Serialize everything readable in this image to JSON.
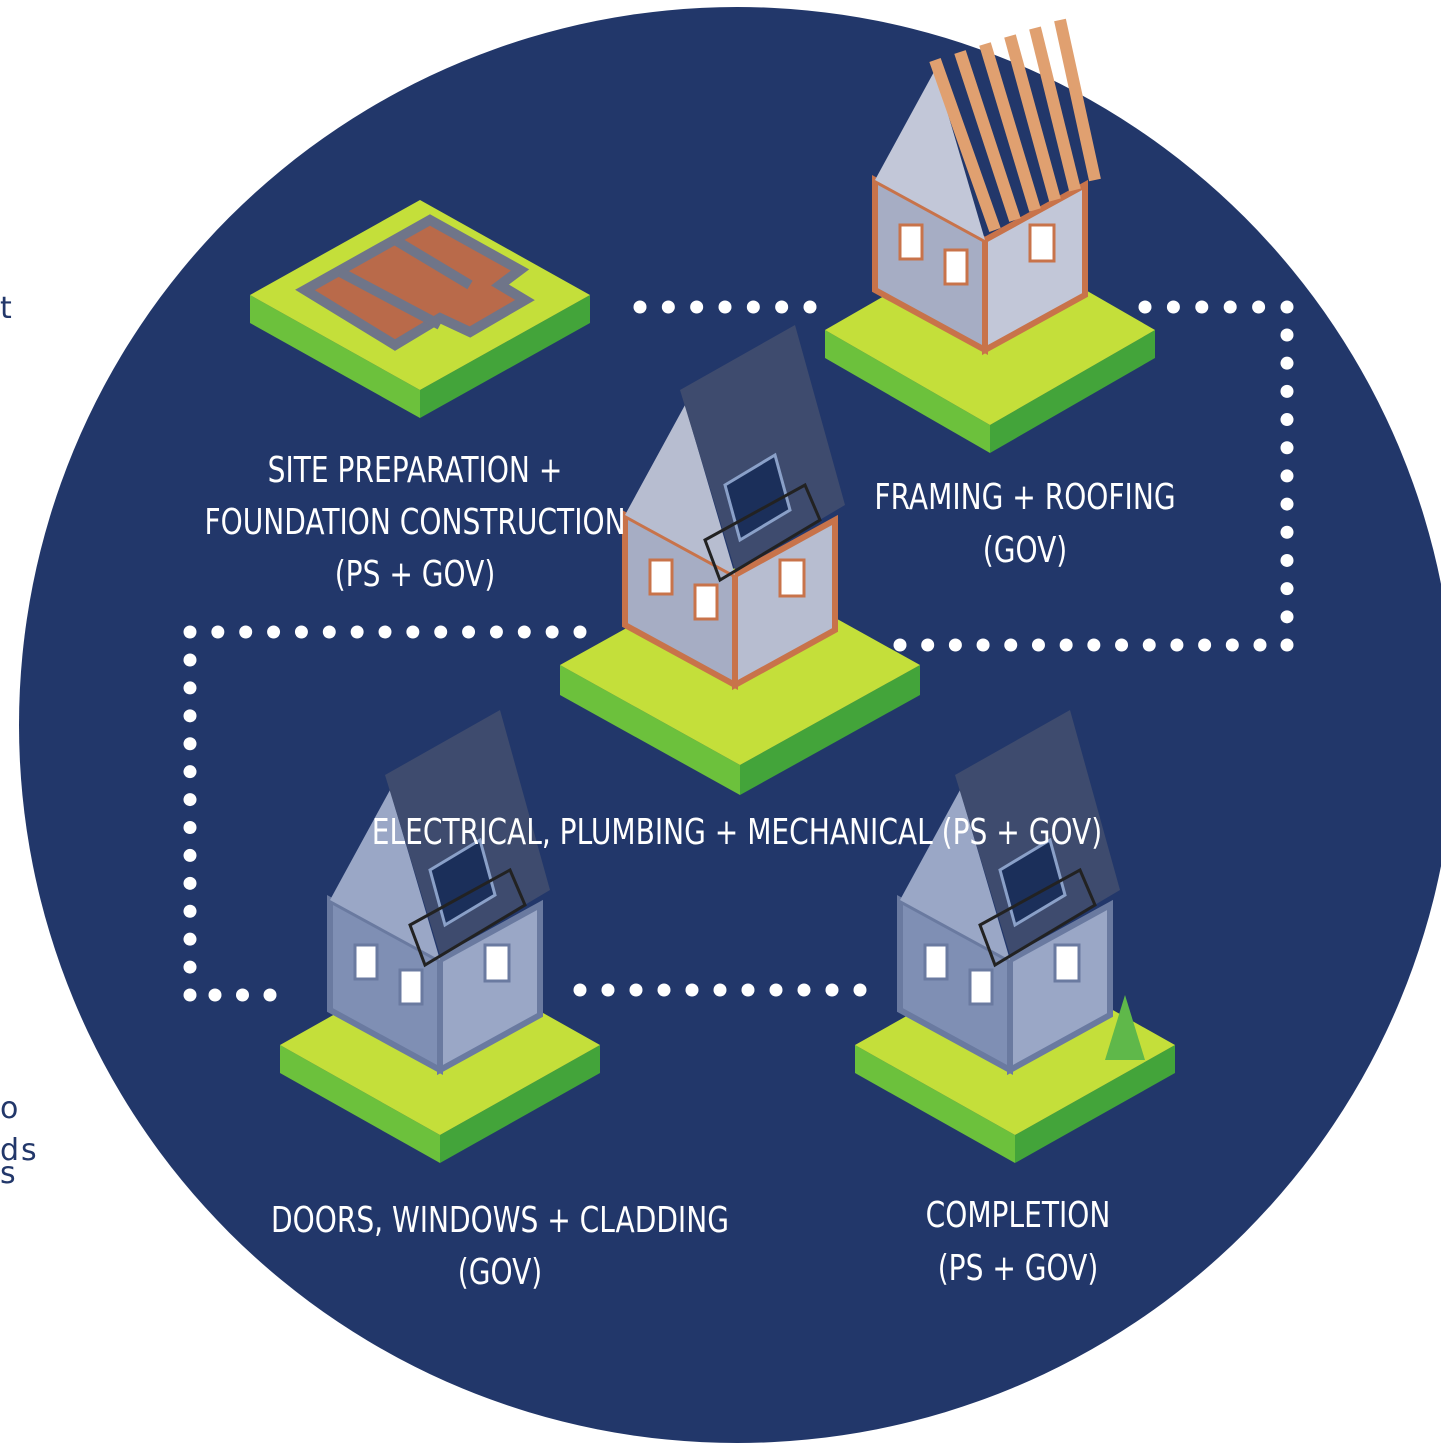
{
  "fragments": [
    "t",
    "o",
    "ds",
    "s"
  ],
  "stages": [
    {
      "label_lines": [
        "SITE PREPARATION +",
        "FOUNDATION CONSTRUCTION",
        "(PS + GOV)"
      ]
    },
    {
      "label_lines": [
        "FRAMING + ROOFING",
        "(GOV)"
      ]
    },
    {
      "label_lines": [
        "ELECTRICAL, PLUMBING + MECHANICAL (PS + GOV)"
      ]
    },
    {
      "label_lines": [
        "DOORS, WINDOWS + CLADDING",
        "(GOV)"
      ]
    },
    {
      "label_lines": [
        "COMPLETION",
        "(PS + GOV)"
      ]
    }
  ]
}
